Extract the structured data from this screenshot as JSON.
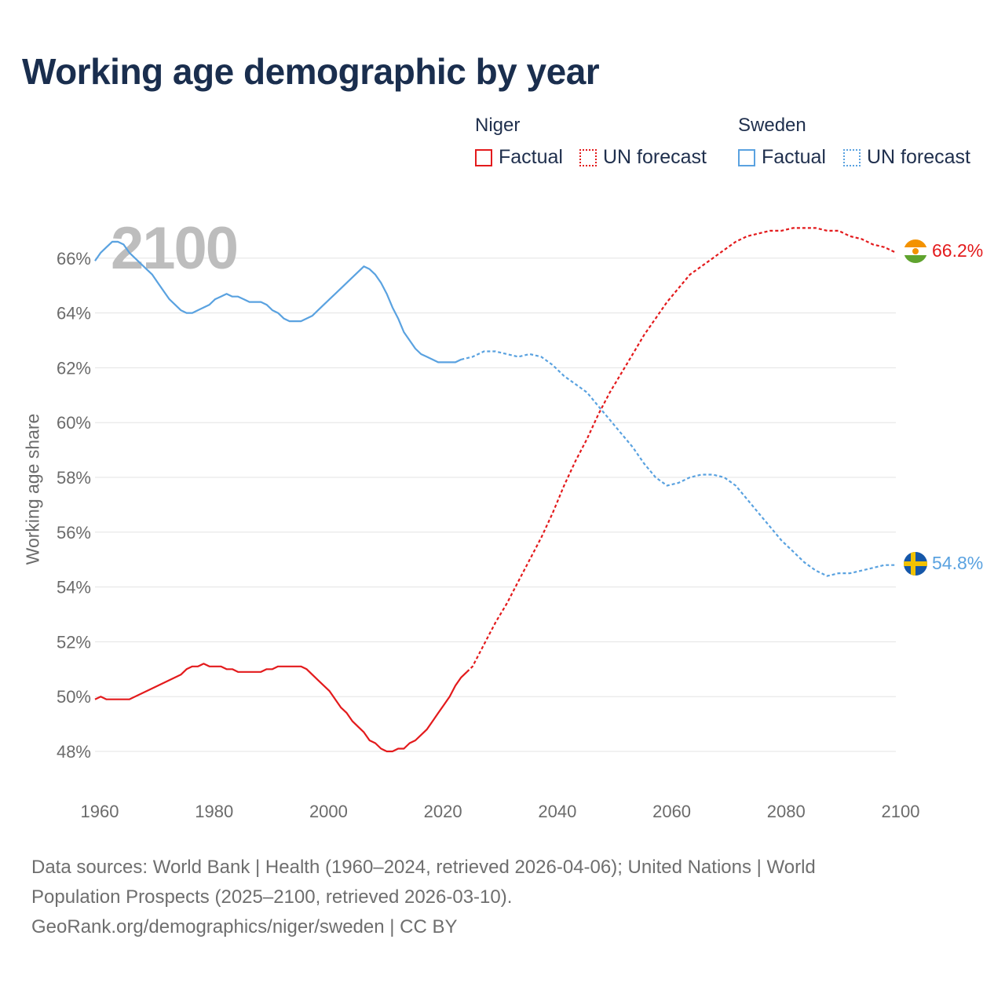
{
  "title": "Working age demographic by year",
  "legend": {
    "groups": [
      {
        "name": "Niger",
        "items": [
          {
            "label": "Factual",
            "style": "solid"
          },
          {
            "label": "UN forecast",
            "style": "dotted"
          }
        ],
        "color": "#e31a1c"
      },
      {
        "name": "Sweden",
        "items": [
          {
            "label": "Factual",
            "style": "solid"
          },
          {
            "label": "UN forecast",
            "style": "dotted"
          }
        ],
        "color": "#5aa2e0"
      }
    ]
  },
  "year_watermark": "2100",
  "footer": {
    "line1": "Data sources: World Bank | Health (1960–2024, retrieved 2026-04-06); United Nations | World",
    "line2": "Population Prospects (2025–2100, retrieved 2026-03-10).",
    "line3": "GeoRank.org/demographics/niger/sweden | CC BY"
  },
  "chart_data": {
    "type": "line",
    "title": "Working age demographic by year",
    "xlabel": "",
    "ylabel": "Working age share",
    "xlim": [
      1960,
      2100
    ],
    "ylim": [
      47,
      68
    ],
    "x_ticks": [
      1960,
      1980,
      2000,
      2020,
      2040,
      2060,
      2080,
      2100
    ],
    "x_tick_labels": [
      "1960",
      "1980",
      "2000",
      "2020",
      "2040",
      "2060",
      "2080",
      "2100"
    ],
    "y_ticks": [
      48,
      50,
      52,
      54,
      56,
      58,
      60,
      62,
      64,
      66
    ],
    "y_tick_labels": [
      "48%",
      "50%",
      "52%",
      "54%",
      "56%",
      "58%",
      "60%",
      "62%",
      "64%",
      "66%"
    ],
    "grid": "horizontal",
    "series": [
      {
        "name": "Niger",
        "color": "#e31a1c",
        "end_label": "66.2%",
        "factual": [
          [
            1960,
            49.9
          ],
          [
            1961,
            50.0
          ],
          [
            1962,
            49.9
          ],
          [
            1964,
            49.9
          ],
          [
            1966,
            49.9
          ],
          [
            1970,
            50.3
          ],
          [
            1975,
            50.8
          ],
          [
            1976,
            51.0
          ],
          [
            1977,
            51.1
          ],
          [
            1978,
            51.1
          ],
          [
            1979,
            51.2
          ],
          [
            1980,
            51.1
          ],
          [
            1982,
            51.1
          ],
          [
            1983,
            51.0
          ],
          [
            1984,
            51.0
          ],
          [
            1985,
            50.9
          ],
          [
            1987,
            50.9
          ],
          [
            1989,
            50.9
          ],
          [
            1990,
            51.0
          ],
          [
            1991,
            51.0
          ],
          [
            1992,
            51.1
          ],
          [
            1994,
            51.1
          ],
          [
            1996,
            51.1
          ],
          [
            1997,
            51.0
          ],
          [
            1999,
            50.6
          ],
          [
            2001,
            50.2
          ],
          [
            2002,
            49.9
          ],
          [
            2003,
            49.6
          ],
          [
            2004,
            49.4
          ],
          [
            2005,
            49.1
          ],
          [
            2006,
            48.9
          ],
          [
            2007,
            48.7
          ],
          [
            2008,
            48.4
          ],
          [
            2009,
            48.3
          ],
          [
            2010,
            48.1
          ],
          [
            2011,
            48.0
          ],
          [
            2012,
            48.0
          ],
          [
            2013,
            48.1
          ],
          [
            2014,
            48.1
          ],
          [
            2015,
            48.3
          ],
          [
            2016,
            48.4
          ],
          [
            2017,
            48.6
          ],
          [
            2018,
            48.8
          ],
          [
            2019,
            49.1
          ],
          [
            2020,
            49.4
          ],
          [
            2021,
            49.7
          ],
          [
            2022,
            50.0
          ],
          [
            2023,
            50.4
          ],
          [
            2024,
            50.7
          ],
          [
            2025,
            50.9
          ]
        ],
        "forecast": [
          [
            2025,
            50.9
          ],
          [
            2026,
            51.1
          ],
          [
            2027,
            51.5
          ],
          [
            2028,
            51.9
          ],
          [
            2029,
            52.3
          ],
          [
            2030,
            52.7
          ],
          [
            2032,
            53.4
          ],
          [
            2034,
            54.2
          ],
          [
            2036,
            55.0
          ],
          [
            2038,
            55.8
          ],
          [
            2040,
            56.7
          ],
          [
            2042,
            57.7
          ],
          [
            2044,
            58.6
          ],
          [
            2046,
            59.4
          ],
          [
            2048,
            60.3
          ],
          [
            2050,
            61.1
          ],
          [
            2052,
            61.8
          ],
          [
            2054,
            62.5
          ],
          [
            2056,
            63.2
          ],
          [
            2058,
            63.8
          ],
          [
            2060,
            64.4
          ],
          [
            2062,
            64.9
          ],
          [
            2064,
            65.4
          ],
          [
            2066,
            65.7
          ],
          [
            2068,
            66.0
          ],
          [
            2070,
            66.3
          ],
          [
            2072,
            66.6
          ],
          [
            2074,
            66.8
          ],
          [
            2076,
            66.9
          ],
          [
            2078,
            67.0
          ],
          [
            2080,
            67.0
          ],
          [
            2082,
            67.1
          ],
          [
            2086,
            67.1
          ],
          [
            2088,
            67.0
          ],
          [
            2090,
            67.0
          ],
          [
            2092,
            66.8
          ],
          [
            2094,
            66.7
          ],
          [
            2096,
            66.5
          ],
          [
            2098,
            66.4
          ],
          [
            2100,
            66.2
          ]
        ]
      },
      {
        "name": "Sweden",
        "color": "#5aa2e0",
        "end_label": "54.8%",
        "factual": [
          [
            1960,
            65.9
          ],
          [
            1961,
            66.2
          ],
          [
            1962,
            66.4
          ],
          [
            1963,
            66.6
          ],
          [
            1964,
            66.6
          ],
          [
            1965,
            66.5
          ],
          [
            1966,
            66.2
          ],
          [
            1967,
            66.0
          ],
          [
            1968,
            65.8
          ],
          [
            1969,
            65.6
          ],
          [
            1970,
            65.4
          ],
          [
            1971,
            65.1
          ],
          [
            1972,
            64.8
          ],
          [
            1973,
            64.5
          ],
          [
            1974,
            64.3
          ],
          [
            1975,
            64.1
          ],
          [
            1976,
            64.0
          ],
          [
            1977,
            64.0
          ],
          [
            1978,
            64.1
          ],
          [
            1979,
            64.2
          ],
          [
            1980,
            64.3
          ],
          [
            1981,
            64.5
          ],
          [
            1982,
            64.6
          ],
          [
            1983,
            64.7
          ],
          [
            1984,
            64.6
          ],
          [
            1985,
            64.6
          ],
          [
            1986,
            64.5
          ],
          [
            1987,
            64.4
          ],
          [
            1988,
            64.4
          ],
          [
            1989,
            64.4
          ],
          [
            1990,
            64.3
          ],
          [
            1991,
            64.1
          ],
          [
            1992,
            64.0
          ],
          [
            1993,
            63.8
          ],
          [
            1994,
            63.7
          ],
          [
            1995,
            63.7
          ],
          [
            1996,
            63.7
          ],
          [
            1997,
            63.8
          ],
          [
            1998,
            63.9
          ],
          [
            1999,
            64.1
          ],
          [
            2000,
            64.3
          ],
          [
            2001,
            64.5
          ],
          [
            2002,
            64.7
          ],
          [
            2003,
            64.9
          ],
          [
            2004,
            65.1
          ],
          [
            2005,
            65.3
          ],
          [
            2006,
            65.5
          ],
          [
            2007,
            65.7
          ],
          [
            2008,
            65.6
          ],
          [
            2009,
            65.4
          ],
          [
            2010,
            65.1
          ],
          [
            2011,
            64.7
          ],
          [
            2012,
            64.2
          ],
          [
            2013,
            63.8
          ],
          [
            2014,
            63.3
          ],
          [
            2015,
            63.0
          ],
          [
            2016,
            62.7
          ],
          [
            2017,
            62.5
          ],
          [
            2018,
            62.4
          ],
          [
            2019,
            62.3
          ],
          [
            2020,
            62.2
          ],
          [
            2021,
            62.2
          ],
          [
            2022,
            62.2
          ],
          [
            2023,
            62.2
          ],
          [
            2024,
            62.3
          ]
        ],
        "forecast": [
          [
            2024,
            62.3
          ],
          [
            2026,
            62.4
          ],
          [
            2028,
            62.6
          ],
          [
            2030,
            62.6
          ],
          [
            2032,
            62.5
          ],
          [
            2034,
            62.4
          ],
          [
            2036,
            62.5
          ],
          [
            2038,
            62.4
          ],
          [
            2040,
            62.1
          ],
          [
            2042,
            61.7
          ],
          [
            2044,
            61.4
          ],
          [
            2046,
            61.1
          ],
          [
            2048,
            60.6
          ],
          [
            2050,
            60.1
          ],
          [
            2052,
            59.6
          ],
          [
            2054,
            59.1
          ],
          [
            2056,
            58.5
          ],
          [
            2058,
            58.0
          ],
          [
            2060,
            57.7
          ],
          [
            2062,
            57.8
          ],
          [
            2064,
            58.0
          ],
          [
            2066,
            58.1
          ],
          [
            2068,
            58.1
          ],
          [
            2070,
            58.0
          ],
          [
            2072,
            57.7
          ],
          [
            2074,
            57.2
          ],
          [
            2076,
            56.7
          ],
          [
            2078,
            56.2
          ],
          [
            2080,
            55.7
          ],
          [
            2082,
            55.3
          ],
          [
            2084,
            54.9
          ],
          [
            2086,
            54.6
          ],
          [
            2088,
            54.4
          ],
          [
            2090,
            54.5
          ],
          [
            2092,
            54.5
          ],
          [
            2094,
            54.6
          ],
          [
            2096,
            54.7
          ],
          [
            2098,
            54.8
          ],
          [
            2100,
            54.8
          ]
        ]
      }
    ]
  }
}
